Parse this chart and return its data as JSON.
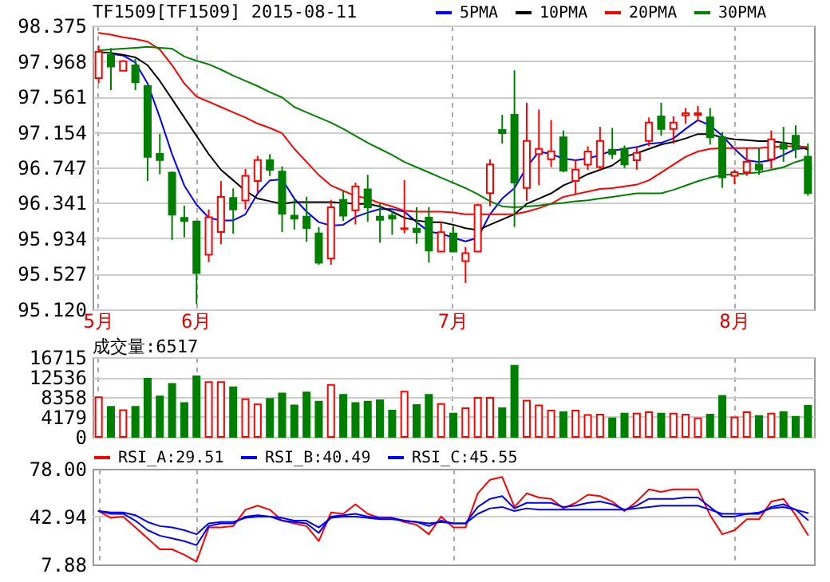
{
  "chart_data": [
    {
      "type": "candlestick",
      "title": "TF1509[TF1509] 2015-08-11",
      "categories": [
        "5月",
        null,
        null,
        null,
        null,
        null,
        null,
        null,
        "6月",
        null,
        null,
        null,
        null,
        null,
        null,
        null,
        null,
        null,
        null,
        null,
        null,
        null,
        null,
        null,
        null,
        null,
        null,
        null,
        null,
        "7月",
        null,
        null,
        null,
        null,
        null,
        null,
        null,
        null,
        null,
        null,
        null,
        null,
        null,
        null,
        null,
        null,
        null,
        null,
        null,
        null,
        null,
        null,
        "8月",
        null,
        null,
        null,
        null,
        null,
        null
      ],
      "ohlc": [
        [
          97.772,
          98.146,
          97.712,
          98.074
        ],
        [
          98.037,
          98.116,
          97.634,
          97.905
        ],
        [
          97.857,
          97.977,
          97.857,
          97.965
        ],
        [
          97.917,
          97.995,
          97.634,
          97.724
        ],
        [
          97.682,
          97.682,
          96.591,
          96.868
        ],
        [
          96.904,
          97.133,
          96.669,
          96.832
        ],
        [
          96.687,
          96.7,
          95.916,
          96.205
        ],
        [
          96.169,
          96.308,
          95.946,
          96.133
        ],
        [
          96.127,
          96.127,
          95.18,
          95.536
        ],
        [
          95.747,
          96.265,
          95.662,
          96.175
        ],
        [
          96.006,
          96.591,
          95.867,
          96.41
        ],
        [
          96.398,
          96.507,
          95.988,
          96.265
        ],
        [
          96.368,
          96.729,
          96.265,
          96.651
        ],
        [
          96.591,
          96.88,
          96.458,
          96.832
        ],
        [
          96.83,
          96.9,
          96.65,
          96.72
        ],
        [
          96.699,
          96.76,
          96.006,
          96.217
        ],
        [
          96.195,
          96.393,
          96.034,
          96.159
        ],
        [
          96.183,
          96.411,
          95.896,
          96.052
        ],
        [
          95.992,
          96.064,
          95.632,
          95.656
        ],
        [
          95.704,
          96.375,
          95.632,
          96.291
        ],
        [
          96.375,
          96.483,
          96.135,
          96.195
        ],
        [
          96.255,
          96.573,
          96.093,
          96.531
        ],
        [
          96.495,
          96.663,
          96.124,
          96.291
        ],
        [
          96.183,
          96.333,
          95.884,
          96.147
        ],
        [
          96.195,
          96.243,
          95.974,
          96.159
        ],
        [
          96.04,
          96.603,
          95.992,
          96.05
        ],
        [
          96.046,
          96.291,
          95.872,
          96.004
        ],
        [
          96.171,
          96.291,
          95.656,
          95.794
        ],
        [
          95.782,
          96.124,
          95.776,
          96.004
        ],
        [
          95.992,
          96.076,
          95.776,
          95.782
        ],
        [
          95.674,
          95.836,
          95.423,
          95.764
        ],
        [
          95.782,
          96.33,
          95.776,
          96.315
        ],
        [
          96.453,
          96.842,
          96.303,
          96.782
        ],
        [
          97.177,
          97.351,
          97.022,
          97.141
        ],
        [
          97.351,
          97.86,
          96.064,
          96.573
        ],
        [
          96.513,
          97.489,
          96.363,
          97.052
        ],
        [
          96.9,
          97.411,
          96.543,
          96.96
        ],
        [
          96.842,
          97.291,
          96.752,
          96.932
        ],
        [
          97.093,
          97.171,
          96.692,
          96.71
        ],
        [
          96.591,
          96.842,
          96.435,
          96.723
        ],
        [
          96.78,
          96.99,
          96.72,
          96.93
        ],
        [
          96.752,
          97.213,
          96.722,
          97.052
        ],
        [
          96.95,
          97.201,
          96.842,
          96.9
        ],
        [
          96.962,
          97.0,
          96.74,
          96.782
        ],
        [
          96.83,
          96.992,
          96.722,
          96.914
        ],
        [
          97.052,
          97.321,
          96.992,
          97.261
        ],
        [
          97.333,
          97.489,
          97.111,
          97.189
        ],
        [
          97.189,
          97.333,
          97.022,
          97.261
        ],
        [
          97.345,
          97.429,
          97.249,
          97.369
        ],
        [
          97.351,
          97.453,
          97.273,
          97.369
        ],
        [
          97.321,
          97.429,
          97.01,
          97.093
        ],
        [
          97.093,
          97.153,
          96.513,
          96.633
        ],
        [
          96.651,
          96.723,
          96.555,
          96.693
        ],
        [
          96.693,
          96.974,
          96.651,
          96.812
        ],
        [
          96.782,
          96.974,
          96.663,
          96.723
        ],
        [
          96.842,
          97.171,
          96.734,
          97.07
        ],
        [
          97.01,
          97.213,
          96.812,
          96.962
        ],
        [
          97.111,
          97.231,
          96.854,
          96.962
        ],
        [
          96.872,
          97.022,
          96.423,
          96.453
        ]
      ],
      "colors": [
        "#ff0000",
        "#008000",
        "#ff0000",
        "#008000",
        "#008000",
        "#008000",
        "#008000",
        "#008000",
        "#008000",
        "#ff0000",
        "#ff0000",
        "#008000",
        "#ff0000",
        "#ff0000",
        "#008000",
        "#008000",
        "#008000",
        "#008000",
        "#008000",
        "#ff0000",
        "#008000",
        "#ff0000",
        "#008000",
        "#008000",
        "#008000",
        "#ff0000",
        "#008000",
        "#008000",
        "#ff0000",
        "#008000",
        "#ff0000",
        "#ff0000",
        "#ff0000",
        "#008000",
        "#008000",
        "#ff0000",
        "#ff0000",
        "#ff0000",
        "#008000",
        "#ff0000",
        "#ff0000",
        "#ff0000",
        "#008000",
        "#008000",
        "#ff0000",
        "#ff0000",
        "#008000",
        "#ff0000",
        "#ff0000",
        "#ff0000",
        "#008000",
        "#008000",
        "#ff0000",
        "#ff0000",
        "#008000",
        "#ff0000",
        "#008000",
        "#008000",
        "#008000"
      ],
      "series": [
        {
          "name": "5PMA",
          "type": "line",
          "color": "#0000ff",
          "values": [
            null,
            98.05,
            98.03,
            97.95,
            97.71,
            97.32,
            96.9,
            96.54,
            96.32,
            96.17,
            96.14,
            96.14,
            96.21,
            96.45,
            96.6,
            96.61,
            96.39,
            96.24,
            96.12,
            96.08,
            96.09,
            96.18,
            96.23,
            96.27,
            96.27,
            96.24,
            96.12,
            96.01,
            95.99,
            95.94,
            95.9,
            95.94,
            96.21,
            96.39,
            96.51,
            96.75,
            96.93,
            96.9,
            96.85,
            96.83,
            96.85,
            96.89,
            96.94,
            96.96,
            96.98,
            97.02,
            97.03,
            97.08,
            97.19,
            97.29,
            97.23,
            97.11,
            96.96,
            96.83,
            96.81,
            96.83,
            96.89,
            96.96,
            96.97
          ]
        },
        {
          "name": "10PMA",
          "type": "line",
          "color": "#000000",
          "values": [
            98.07,
            98.06,
            98.04,
            98.01,
            97.92,
            97.74,
            97.53,
            97.32,
            97.11,
            96.9,
            96.72,
            96.6,
            96.48,
            96.39,
            96.36,
            96.33,
            96.35,
            96.35,
            96.35,
            96.35,
            96.34,
            96.33,
            96.33,
            96.3,
            96.24,
            96.17,
            96.14,
            96.12,
            96.12,
            96.09,
            96.05,
            96.03,
            96.09,
            96.15,
            96.21,
            96.33,
            96.39,
            96.45,
            96.54,
            96.6,
            96.67,
            96.72,
            96.77,
            96.87,
            96.91,
            96.96,
            97.01,
            97.04,
            97.08,
            97.13,
            97.13,
            97.09,
            97.07,
            97.06,
            97.05,
            97.05,
            97.03,
            97.01,
            96.95
          ]
        },
        {
          "name": "20PMA",
          "type": "line",
          "color": "#ff0000",
          "values": [
            98.29,
            98.27,
            98.24,
            98.22,
            98.19,
            98.1,
            97.92,
            97.71,
            97.56,
            97.5,
            97.44,
            97.38,
            97.32,
            97.25,
            97.2,
            97.14,
            96.96,
            96.81,
            96.66,
            96.54,
            96.48,
            96.42,
            96.39,
            96.34,
            96.3,
            96.25,
            96.24,
            96.24,
            96.24,
            96.23,
            96.21,
            96.21,
            96.21,
            96.21,
            96.21,
            96.24,
            96.28,
            96.33,
            96.41,
            96.44,
            96.47,
            96.5,
            96.51,
            96.53,
            96.55,
            96.6,
            96.69,
            96.78,
            96.87,
            96.93,
            96.96,
            96.97,
            96.97,
            96.97,
            96.97,
            96.98,
            96.99,
            96.99,
            96.98
          ]
        },
        {
          "name": "30PMA",
          "type": "line",
          "color": "#008000",
          "values": [
            98.09,
            98.1,
            98.11,
            98.12,
            98.13,
            98.12,
            98.11,
            98.02,
            97.97,
            97.93,
            97.87,
            97.8,
            97.74,
            97.68,
            97.61,
            97.55,
            97.44,
            97.38,
            97.32,
            97.26,
            97.19,
            97.11,
            97.03,
            96.96,
            96.89,
            96.81,
            96.75,
            96.69,
            96.63,
            96.57,
            96.51,
            96.44,
            96.36,
            96.3,
            96.29,
            96.3,
            96.31,
            96.33,
            96.34,
            96.36,
            96.37,
            96.39,
            96.41,
            96.43,
            96.45,
            96.45,
            96.45,
            96.49,
            96.54,
            96.59,
            96.63,
            96.66,
            96.67,
            96.68,
            96.69,
            96.72,
            96.75,
            96.81,
            96.85
          ]
        }
      ],
      "ylim": [
        95.12,
        98.375
      ],
      "yticks": [
        98.375,
        97.968,
        97.561,
        97.154,
        96.747,
        96.341,
        95.934,
        95.527,
        {
          "value": 95.12,
          "label": "95.120"
        }
      ],
      "grid": true,
      "legend": "top right",
      "marker": "none",
      "line_style": "solid"
    },
    {
      "type": "bar",
      "title": "成交量:6517",
      "categories": [
        null,
        null,
        null,
        null,
        null,
        null,
        null,
        null,
        null,
        null,
        null,
        null,
        null,
        null,
        null,
        null,
        null,
        null,
        null,
        null,
        null,
        null,
        null,
        null,
        null,
        null,
        null,
        null,
        null,
        null,
        null,
        null,
        null,
        null,
        null,
        null,
        null,
        null,
        null,
        null,
        null,
        null,
        null,
        null,
        null,
        null,
        null,
        null,
        null,
        null,
        null,
        null,
        null,
        null,
        null,
        null,
        null,
        null,
        null
      ],
      "values": [
        8300,
        6300,
        5600,
        6300,
        12200,
        8500,
        11100,
        7100,
        12700,
        11500,
        11500,
        10400,
        7900,
        6800,
        8000,
        9100,
        6600,
        9300,
        7400,
        10900,
        8800,
        7100,
        7400,
        7700,
        5500,
        9500,
        6700,
        8800,
        6900,
        4900,
        6000,
        8200,
        8200,
        6000,
        14900,
        7600,
        6600,
        5500,
        5200,
        5500,
        4600,
        4700,
        3900,
        4900,
        4900,
        5200,
        4900,
        4900,
        4700,
        3900,
        4700,
        8600,
        4100,
        5200,
        4400,
        4900,
        5200,
        4200,
        6517
      ],
      "colors": [
        "#ff0000",
        "#008000",
        "#ff0000",
        "#008000",
        "#008000",
        "#008000",
        "#008000",
        "#008000",
        "#008000",
        "#ff0000",
        "#ff0000",
        "#008000",
        "#ff0000",
        "#ff0000",
        "#008000",
        "#008000",
        "#008000",
        "#008000",
        "#008000",
        "#ff0000",
        "#008000",
        "#008000",
        "#008000",
        "#008000",
        "#008000",
        "#ff0000",
        "#008000",
        "#008000",
        "#ff0000",
        "#008000",
        "#ff0000",
        "#ff0000",
        "#ff0000",
        "#008000",
        "#008000",
        "#ff0000",
        "#ff0000",
        "#ff0000",
        "#008000",
        "#ff0000",
        "#ff0000",
        "#ff0000",
        "#008000",
        "#008000",
        "#ff0000",
        "#ff0000",
        "#008000",
        "#ff0000",
        "#ff0000",
        "#ff0000",
        "#008000",
        "#008000",
        "#ff0000",
        "#ff0000",
        "#008000",
        "#ff0000",
        "#008000",
        "#008000",
        "#008000"
      ],
      "ylim": [
        0,
        16715
      ],
      "yticks": [
        0,
        4179,
        8358,
        12536,
        16715
      ],
      "grid": true,
      "tick_labels": "y"
    },
    {
      "type": "line",
      "categories": [
        null,
        null,
        null,
        null,
        null,
        null,
        null,
        null,
        null,
        null,
        null,
        null,
        null,
        null,
        null,
        null,
        null,
        null,
        null,
        null,
        null,
        null,
        null,
        null,
        null,
        null,
        null,
        null,
        null,
        null,
        null,
        null,
        null,
        null,
        null,
        null,
        null,
        null,
        null,
        null,
        null,
        null,
        null,
        null,
        null,
        null,
        null,
        null,
        null,
        null,
        null,
        null,
        null,
        null,
        null,
        null,
        null,
        null,
        null
      ],
      "series": [
        {
          "name": "RSI_A:29.51",
          "color": "#ff0000",
          "values": [
            47,
            42,
            43,
            35,
            27,
            19,
            19,
            15,
            10,
            35,
            35,
            36,
            48,
            51,
            48,
            40,
            38,
            36,
            25,
            46,
            45,
            52,
            45,
            42,
            42,
            39,
            37,
            30,
            43,
            35,
            35,
            60,
            70,
            72,
            50,
            60,
            57,
            56,
            49,
            53,
            59,
            58,
            54,
            47,
            54,
            63,
            61,
            63,
            63,
            63,
            44,
            30,
            33,
            41,
            41,
            54,
            56,
            44,
            29.51
          ]
        },
        {
          "name": "RSI_B:40.49",
          "color": "#0000ff",
          "values": [
            47,
            45,
            45,
            40,
            33,
            29,
            27,
            25,
            22,
            36,
            38,
            38,
            43,
            44,
            43,
            40,
            39,
            38,
            31,
            43,
            44,
            45,
            43,
            42,
            42,
            40,
            39,
            36,
            40,
            38,
            38,
            50,
            56,
            58,
            49,
            53,
            53,
            53,
            50,
            51,
            53,
            54,
            52,
            48,
            51,
            56,
            56,
            56,
            57,
            57,
            50,
            43,
            43,
            45,
            45,
            50,
            52,
            48,
            40.49
          ]
        },
        {
          "name": "RSI_C:45.55",
          "color": "#0000ff",
          "values": [
            47,
            46,
            46,
            44,
            39,
            36,
            35,
            33,
            30,
            38,
            39,
            39,
            42,
            43,
            43,
            42,
            40,
            40,
            35,
            42,
            43,
            43,
            42,
            41,
            41,
            40,
            39,
            38,
            39,
            38,
            38,
            45,
            49,
            50,
            47,
            49,
            48,
            48,
            48,
            48,
            48,
            48,
            48,
            48,
            49,
            50,
            51,
            51,
            51,
            51,
            48,
            45,
            45,
            45,
            46,
            49,
            50,
            48,
            45.55
          ]
        }
      ],
      "ylim": [
        7.88,
        78
      ],
      "yticks": [
        {
          "value": 78,
          "label": "78.00"
        },
        42.94,
        7.88
      ],
      "ref_lines": [
        {
          "axis": "y",
          "value": 42.94,
          "color": "#cccccc"
        }
      ],
      "grid": "x",
      "legend": "top left",
      "marker": "none",
      "line_style": "solid",
      "tick_labels": "y"
    }
  ]
}
